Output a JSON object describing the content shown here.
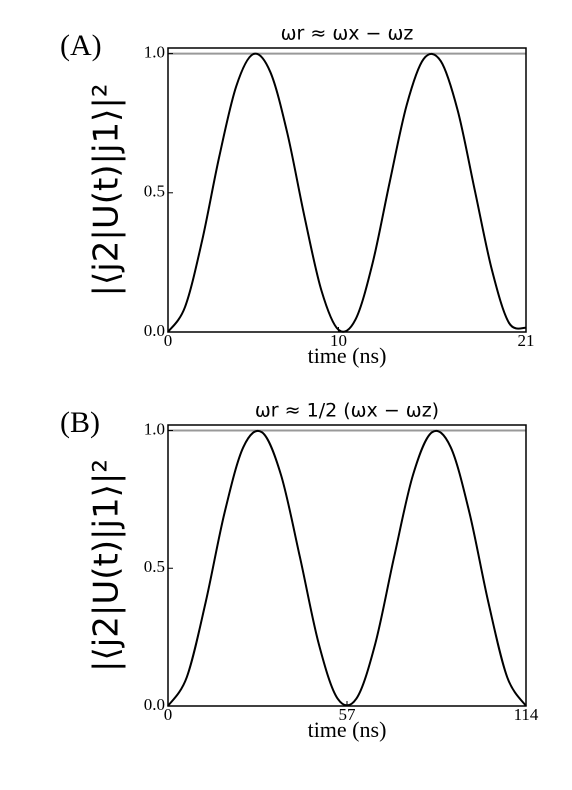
{
  "chart_data": [
    {
      "type": "line",
      "label": "(A)",
      "title": "ωr ≈ ωx − ωz",
      "ylabel": "|⟨j2|U(t)|j1⟩|²",
      "xlabel": "time (ns)",
      "x": [
        0,
        1,
        2,
        3,
        4,
        5,
        6,
        7,
        8,
        9,
        10,
        11,
        12,
        13,
        14,
        15,
        16,
        17,
        18,
        19,
        20,
        21
      ],
      "series": [
        {
          "color": "#000000",
          "values": [
            0,
            0.09,
            0.328,
            0.628,
            0.882,
            0.998,
            0.934,
            0.714,
            0.416,
            0.149,
            0.008,
            0.045,
            0.247,
            0.537,
            0.815,
            0.981,
            0.973,
            0.794,
            0.508,
            0.223,
            0.033,
            0.015
          ]
        }
      ],
      "reference_line": 1,
      "xlim": [
        0,
        21
      ],
      "xticks": [
        0,
        10,
        21
      ],
      "ylim": [
        0,
        1.02
      ],
      "yticks": [
        {
          "value": 0,
          "label": "0.0"
        },
        0.5,
        {
          "value": 1,
          "label": "1.0"
        }
      ]
    },
    {
      "type": "line",
      "label": "(B)",
      "title": "ωr ≈ 1/2 (ωx − ωz)",
      "ylabel": "|⟨j2|U(t)|j1⟩|²",
      "xlabel": "time (ns)",
      "x": [
        0,
        6,
        12,
        18,
        24,
        30,
        36,
        42,
        48,
        54,
        60,
        66,
        72,
        78,
        84,
        90,
        96,
        102,
        108,
        114
      ],
      "series": [
        {
          "color": "#000000",
          "values": [
            0,
            0.105,
            0.377,
            0.701,
            0.94,
            0.993,
            0.838,
            0.541,
            0.226,
            0.027,
            0.027,
            0.226,
            0.541,
            0.838,
            0.993,
            0.94,
            0.701,
            0.377,
            0.105,
            0
          ]
        }
      ],
      "reference_line": 1,
      "xlim": [
        0,
        114
      ],
      "xticks": [
        0,
        57,
        114
      ],
      "ylim": [
        0,
        1.02
      ],
      "yticks": [
        {
          "value": 0,
          "label": "0.0"
        },
        0.5,
        {
          "value": 1,
          "label": "1.0"
        }
      ]
    }
  ]
}
